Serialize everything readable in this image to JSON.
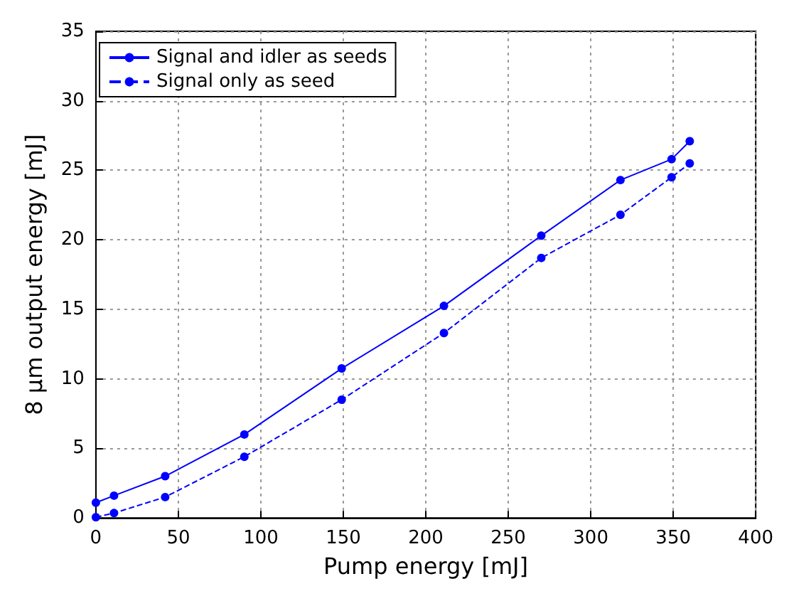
{
  "chart_data": {
    "type": "line",
    "xlabel": "Pump energy [mJ]",
    "ylabel": "8 μm output energy [mJ]",
    "x": [
      0,
      11,
      42,
      90,
      149,
      211,
      270,
      318,
      349,
      360
    ],
    "series": [
      {
        "name": "Signal and idler as seeds",
        "color": "#0000ff",
        "line_style": "solid",
        "values": [
          1.1,
          1.6,
          3.0,
          6.0,
          10.75,
          15.25,
          20.3,
          24.3,
          25.8,
          27.1
        ]
      },
      {
        "name": "Signal only as seed",
        "color": "#0000ff",
        "line_style": "dashed",
        "values": [
          0.05,
          0.35,
          1.5,
          4.4,
          8.5,
          13.3,
          18.7,
          21.8,
          24.5,
          25.5
        ]
      }
    ],
    "xlim": [
      0,
      400
    ],
    "xticks": [
      0,
      50,
      100,
      150,
      200,
      250,
      300,
      350,
      400
    ],
    "ylim": [
      0,
      35
    ],
    "yticks": [
      0,
      5,
      10,
      15,
      20,
      25,
      30,
      35
    ],
    "grid": true,
    "legend": "top left",
    "marker": "circle"
  }
}
